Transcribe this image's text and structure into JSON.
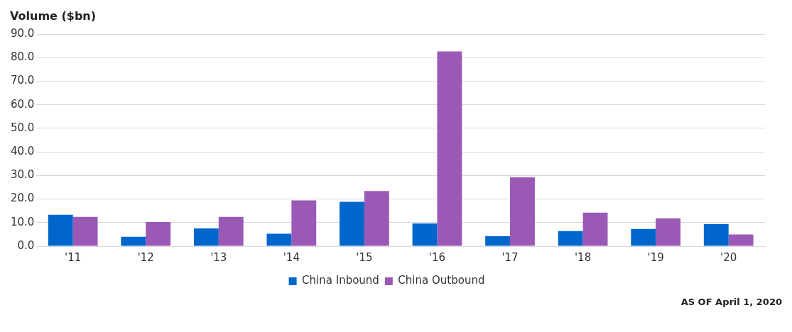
{
  "chart_data": {
    "type": "bar",
    "ylabel": "Volume ($bn)",
    "categories": [
      "'11",
      "'12",
      "'13",
      "'14",
      "'15",
      "'16",
      "'17",
      "'18",
      "'19",
      "'20"
    ],
    "series": [
      {
        "name": "China Inbound",
        "color": "#0066cc",
        "values": [
          13.3,
          4.0,
          7.5,
          5.3,
          18.8,
          9.6,
          4.2,
          6.4,
          7.3,
          9.3
        ]
      },
      {
        "name": "China Outbound",
        "color": "#9b59b6",
        "values": [
          12.4,
          10.2,
          12.4,
          19.4,
          23.4,
          82.6,
          29.2,
          14.2,
          11.8,
          5.0
        ]
      }
    ],
    "ylim": [
      0,
      90
    ],
    "yticks": [
      {
        "value": 0,
        "label": "0.0"
      },
      {
        "value": 10,
        "label": "10.0"
      },
      {
        "value": 20,
        "label": "20.0"
      },
      {
        "value": 30,
        "label": "30.0"
      },
      {
        "value": 40,
        "label": "40.0"
      },
      {
        "value": 50,
        "label": "50.0"
      },
      {
        "value": 60,
        "label": "60.0"
      },
      {
        "value": 70,
        "label": "70.0"
      },
      {
        "value": 80,
        "label": "80.0"
      },
      {
        "value": 90,
        "label": "90.0"
      }
    ],
    "grid": "y",
    "legend": "bottom",
    "annotations": [
      "AS OF April 1, 2020"
    ]
  }
}
